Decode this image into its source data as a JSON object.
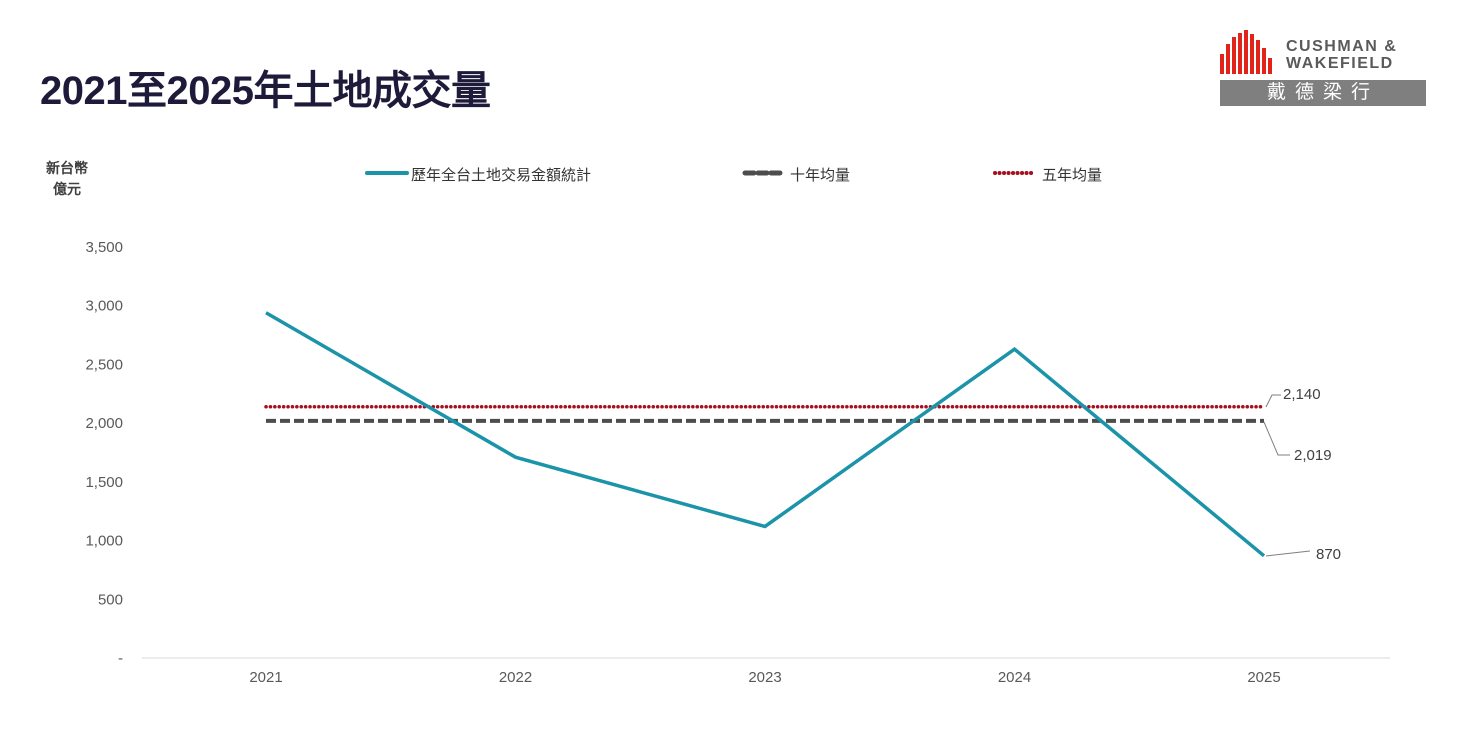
{
  "title": "2021至2025年土地成交量",
  "logo": {
    "line1": "CUSHMAN &",
    "line2": "WAKEFIELD",
    "cn": "戴德梁行"
  },
  "chart_data": {
    "type": "line",
    "ylabel": "新台幣億元",
    "ylabel_lines": [
      "新台幣",
      "億元"
    ],
    "categories": [
      "2021",
      "2022",
      "2023",
      "2024",
      "2025"
    ],
    "ylim": [
      0,
      3500
    ],
    "yticks": [
      {
        "value": 0,
        "label": "-"
      },
      {
        "value": 500,
        "label": "500"
      },
      {
        "value": 1000,
        "label": "1,000"
      },
      {
        "value": 1500,
        "label": "1,500"
      },
      {
        "value": 2000,
        "label": "2,000"
      },
      {
        "value": 2500,
        "label": "2,500"
      },
      {
        "value": 3000,
        "label": "3,000"
      },
      {
        "value": 3500,
        "label": "3,500"
      }
    ],
    "grid": false,
    "legend_position": "top",
    "series": [
      {
        "name": "歷年全台土地交易金額統計",
        "values": [
          2940,
          1710,
          1120,
          2630,
          870
        ],
        "color": "#1b93a9",
        "style": "solid"
      },
      {
        "name": "十年均量",
        "values": [
          2019,
          2019,
          2019,
          2019,
          2019
        ],
        "color": "#4d4d4d",
        "style": "dashed"
      },
      {
        "name": "五年均量",
        "values": [
          2140,
          2140,
          2140,
          2140,
          2140
        ],
        "color": "#a50f1e",
        "style": "dotted"
      }
    ],
    "annotations": [
      {
        "series": 2,
        "text": "2,140"
      },
      {
        "series": 1,
        "text": "2,019"
      },
      {
        "series": 0,
        "text": "870"
      }
    ]
  }
}
